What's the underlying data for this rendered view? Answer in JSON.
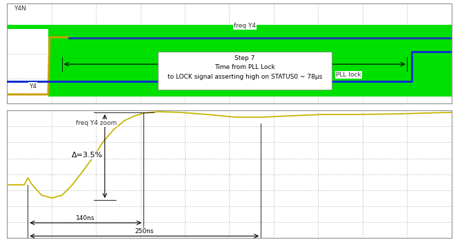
{
  "chart_data": [
    {
      "type": "line",
      "xlim": [
        0,
        10
      ],
      "ylim": [
        0,
        4
      ],
      "xticks": [
        0,
        1,
        2,
        3,
        4,
        5,
        6,
        7,
        8,
        9,
        10
      ],
      "yticks": [
        0,
        1,
        2,
        3,
        4
      ],
      "grid": true,
      "tick_labels": false,
      "series": [
        {
          "name": "Y4N",
          "type": "area",
          "color": "#00e000",
          "x": [
            0,
            0.93,
            0.93,
            10
          ],
          "values": [
            3.15,
            3.15,
            3.15,
            3.15
          ],
          "low": [
            2.98,
            2.98,
            0.28,
            0.28
          ]
        },
        {
          "name": "Y4",
          "type": "line",
          "color": "#c8a000",
          "x": [
            0,
            0.93,
            0.96,
            1.4
          ],
          "values": [
            0.36,
            0.36,
            2.65,
            2.65
          ]
        },
        {
          "name": "freq Y4",
          "type": "line",
          "color": "#1c3fa8",
          "x": [
            1.4,
            10
          ],
          "values": [
            2.62,
            2.62
          ]
        },
        {
          "name": "PLL lock",
          "type": "line",
          "color": "#1030d0",
          "x": [
            0,
            9.1,
            9.1,
            10
          ],
          "values": [
            0.88,
            0.88,
            2.08,
            2.08
          ]
        }
      ],
      "annotations": [
        "Step 7",
        "Time from PLL Lock",
        "to LOCK signal asserting high on STATUS0 ~ 78µs"
      ]
    },
    {
      "type": "line",
      "xlim": [
        0,
        10
      ],
      "ylim": [
        0,
        8
      ],
      "xticks": [
        0,
        1,
        2,
        3,
        4,
        5,
        6,
        7,
        8,
        9,
        10
      ],
      "yticks": [
        0,
        1,
        2,
        3,
        4,
        5,
        6,
        7,
        8
      ],
      "grid": true,
      "tick_labels": false,
      "series": [
        {
          "name": "freq Y4 zoom",
          "type": "line",
          "color": "#c8b400",
          "x": [
            0,
            0.39,
            0.47,
            0.57,
            0.78,
            1.01,
            1.24,
            1.47,
            1.71,
            1.94,
            2.17,
            2.4,
            2.64,
            2.87,
            3.1,
            3.41,
            3.88,
            4.5,
            5.12,
            5.74,
            6.36,
            7.13,
            7.91,
            8.84,
            10
          ],
          "values": [
            3.33,
            3.33,
            3.77,
            3.33,
            2.68,
            2.51,
            2.68,
            3.33,
            4.2,
            5.06,
            6.06,
            6.8,
            7.36,
            7.66,
            7.84,
            7.92,
            7.88,
            7.75,
            7.58,
            7.58,
            7.66,
            7.75,
            7.75,
            7.79,
            7.88
          ]
        }
      ],
      "annotations": [
        "Δ=3.5%",
        "140ns",
        "250ns"
      ]
    }
  ]
}
